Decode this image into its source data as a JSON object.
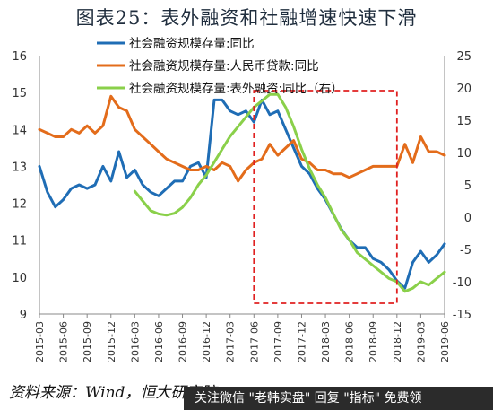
{
  "chart_data": {
    "type": "line",
    "title": "图表25：表外融资和社融增速快速下滑",
    "source": "资料来源：Wind，恒大研究院",
    "watermark": "关注微信 \"老韩实盘\" 回复 \"指标\" 免费领",
    "x_labels": [
      "2015-03",
      "2015-06",
      "2015-09",
      "2015-12",
      "2016-03",
      "2016-06",
      "2016-09",
      "2016-12",
      "2017-03",
      "2017-06",
      "2017-09",
      "2017-12",
      "2018-03",
      "2018-06",
      "2018-09",
      "2018-12",
      "2019-03",
      "2019-06"
    ],
    "ylim_left": [
      9,
      16
    ],
    "left_ticks": [
      "9",
      "10",
      "11",
      "12",
      "13",
      "14",
      "15",
      "16"
    ],
    "ylim_right": [
      -15,
      25
    ],
    "right_ticks": [
      "-15",
      "-10",
      "-5",
      "0",
      "5",
      "10",
      "15",
      "20",
      "25"
    ],
    "legend_position": "top-left",
    "grid": false,
    "highlight": {
      "from": "2017-06",
      "to": "2018-12",
      "style": "dashed-red-box"
    },
    "series": [
      {
        "name": "社会融资规模存量:同比",
        "axis": "left",
        "color": "#1f6db5",
        "x": [
          "2015-03",
          "2015-04",
          "2015-05",
          "2015-06",
          "2015-07",
          "2015-08",
          "2015-09",
          "2015-10",
          "2015-11",
          "2015-12",
          "2016-01",
          "2016-02",
          "2016-03",
          "2016-04",
          "2016-05",
          "2016-06",
          "2016-07",
          "2016-08",
          "2016-09",
          "2016-10",
          "2016-11",
          "2016-12",
          "2017-01",
          "2017-02",
          "2017-03",
          "2017-04",
          "2017-05",
          "2017-06",
          "2017-07",
          "2017-08",
          "2017-09",
          "2017-10",
          "2017-11",
          "2017-12",
          "2018-01",
          "2018-02",
          "2018-03",
          "2018-04",
          "2018-05",
          "2018-06",
          "2018-07",
          "2018-08",
          "2018-09",
          "2018-10",
          "2018-11",
          "2018-12",
          "2019-01",
          "2019-02",
          "2019-03",
          "2019-04",
          "2019-05",
          "2019-06"
        ],
        "y": [
          13.0,
          12.3,
          11.9,
          12.1,
          12.4,
          12.5,
          12.4,
          12.5,
          13.0,
          12.6,
          13.4,
          12.7,
          12.9,
          12.5,
          12.3,
          12.2,
          12.4,
          12.6,
          12.6,
          13.0,
          13.1,
          12.7,
          14.8,
          14.8,
          14.5,
          14.4,
          14.5,
          14.2,
          14.8,
          14.4,
          14.5,
          14.0,
          13.5,
          13.0,
          12.8,
          12.4,
          12.1,
          11.7,
          11.3,
          11.0,
          10.8,
          10.8,
          10.5,
          10.4,
          10.2,
          9.9,
          9.7,
          10.4,
          10.7,
          10.4,
          10.6,
          10.9
        ]
      },
      {
        "name": "社会融资规模存量:人民币贷款:同比",
        "axis": "left",
        "color": "#e36c1b",
        "x": [
          "2015-03",
          "2015-04",
          "2015-05",
          "2015-06",
          "2015-07",
          "2015-08",
          "2015-09",
          "2015-10",
          "2015-11",
          "2015-12",
          "2016-01",
          "2016-02",
          "2016-03",
          "2016-04",
          "2016-05",
          "2016-06",
          "2016-07",
          "2016-08",
          "2016-09",
          "2016-10",
          "2016-11",
          "2016-12",
          "2017-01",
          "2017-02",
          "2017-03",
          "2017-04",
          "2017-05",
          "2017-06",
          "2017-07",
          "2017-08",
          "2017-09",
          "2017-10",
          "2017-11",
          "2017-12",
          "2018-01",
          "2018-02",
          "2018-03",
          "2018-04",
          "2018-05",
          "2018-06",
          "2018-07",
          "2018-08",
          "2018-09",
          "2018-10",
          "2018-11",
          "2018-12",
          "2019-01",
          "2019-02",
          "2019-03",
          "2019-04",
          "2019-05",
          "2019-06"
        ],
        "y": [
          14.0,
          13.9,
          13.8,
          13.8,
          14.0,
          13.9,
          14.1,
          13.9,
          14.1,
          14.9,
          14.6,
          14.5,
          14.0,
          13.8,
          13.6,
          13.4,
          13.2,
          13.1,
          13.0,
          12.9,
          12.9,
          13.0,
          12.9,
          13.1,
          13.0,
          12.6,
          12.9,
          13.1,
          13.2,
          13.6,
          13.3,
          13.5,
          13.7,
          13.2,
          13.1,
          12.9,
          12.9,
          12.8,
          12.8,
          12.7,
          12.8,
          12.9,
          13.0,
          13.0,
          13.0,
          13.0,
          13.6,
          13.1,
          13.8,
          13.4,
          13.4,
          13.3
        ]
      },
      {
        "name": "社会融资规模存量:表外融资:同比（右）",
        "axis": "right",
        "color": "#8ad04a",
        "x": [
          "2016-03",
          "2016-04",
          "2016-05",
          "2016-06",
          "2016-07",
          "2016-08",
          "2016-09",
          "2016-10",
          "2016-11",
          "2016-12",
          "2017-01",
          "2017-02",
          "2017-03",
          "2017-04",
          "2017-05",
          "2017-06",
          "2017-07",
          "2017-08",
          "2017-09",
          "2017-10",
          "2017-11",
          "2017-12",
          "2018-01",
          "2018-02",
          "2018-03",
          "2018-04",
          "2018-05",
          "2018-06",
          "2018-07",
          "2018-08",
          "2018-09",
          "2018-10",
          "2018-11",
          "2018-12",
          "2019-01",
          "2019-02",
          "2019-03",
          "2019-04",
          "2019-05",
          "2019-06"
        ],
        "y": [
          4.0,
          2.5,
          1.0,
          0.5,
          0.3,
          0.6,
          1.5,
          3.0,
          5.0,
          6.5,
          8.5,
          10.5,
          12.5,
          14.0,
          15.5,
          17.0,
          18.0,
          19.0,
          19.0,
          17.0,
          14.0,
          10.5,
          7.5,
          5.0,
          3.0,
          0.5,
          -2.0,
          -3.5,
          -5.5,
          -6.5,
          -7.5,
          -8.5,
          -9.5,
          -10.0,
          -11.5,
          -11.0,
          -10.0,
          -10.5,
          -9.5,
          -8.5
        ]
      }
    ]
  }
}
